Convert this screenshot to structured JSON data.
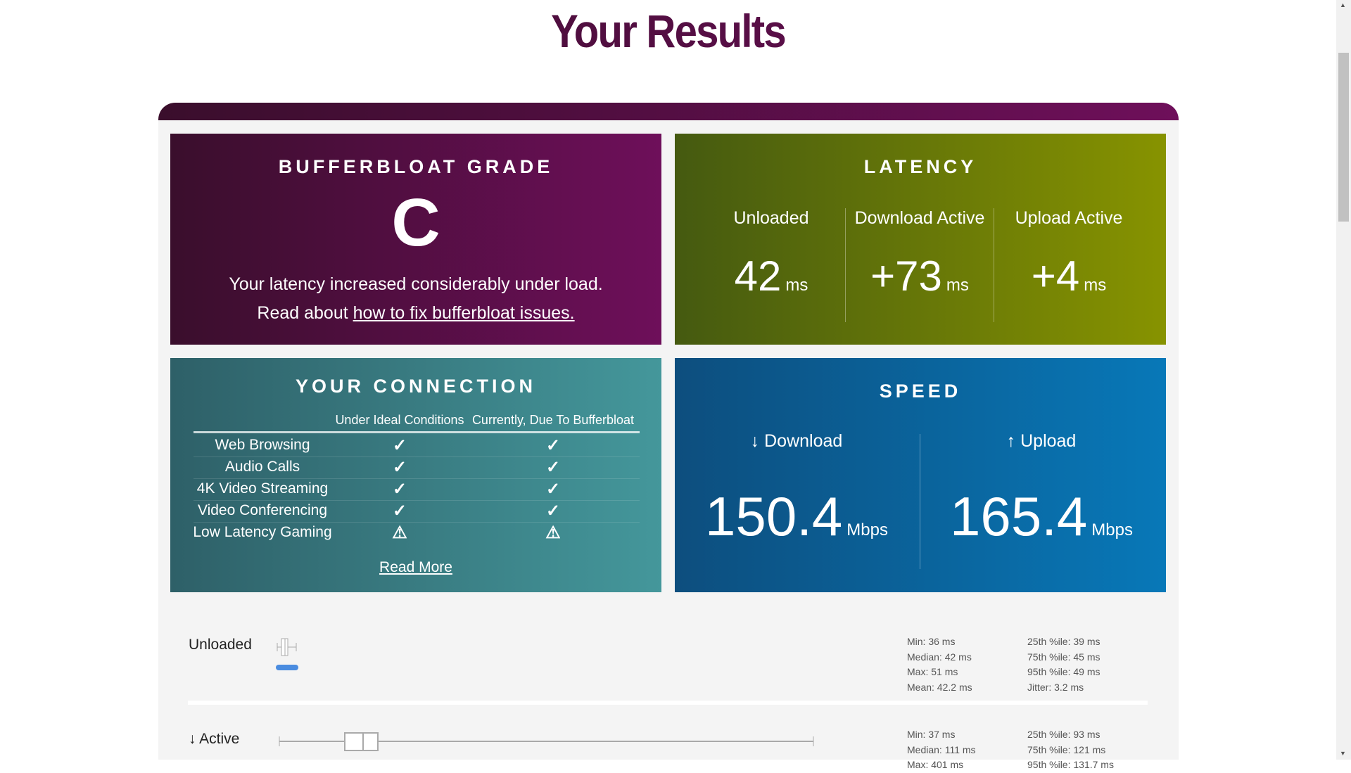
{
  "page": {
    "title": "Your Results"
  },
  "grade": {
    "heading": "BUFFERBLOAT GRADE",
    "grade": "C",
    "message": "Your latency increased considerably under load.",
    "read_prefix": "Read about ",
    "link": "how to fix bufferbloat issues.",
    "gradient": [
      "#3a0e2c",
      "#6e0f5a"
    ]
  },
  "latency": {
    "heading": "LATENCY",
    "items": [
      {
        "label": "Unloaded",
        "value": "42",
        "unit": "ms"
      },
      {
        "label": "Download Active",
        "value": "+73",
        "unit": "ms"
      },
      {
        "label": "Upload Active",
        "value": "+4",
        "unit": "ms"
      }
    ],
    "gradient": [
      "#455a10",
      "#879300"
    ]
  },
  "connection": {
    "heading": "YOUR CONNECTION",
    "columns": [
      "Under Ideal Conditions",
      "Currently, Due To Bufferbloat"
    ],
    "rows": [
      {
        "label": "Web Browsing",
        "ideal": "check",
        "current": "check"
      },
      {
        "label": "Audio Calls",
        "ideal": "check",
        "current": "check"
      },
      {
        "label": "4K Video Streaming",
        "ideal": "check",
        "current": "check"
      },
      {
        "label": "Video Conferencing",
        "ideal": "check",
        "current": "check"
      },
      {
        "label": "Low Latency Gaming",
        "ideal": "warning",
        "current": "warning"
      }
    ],
    "read_more": "Read More"
  },
  "speed": {
    "heading": "SPEED",
    "download": {
      "label": "↓ Download",
      "value": "150.4",
      "unit": "Mbps"
    },
    "upload": {
      "label": "↑ Upload",
      "value": "165.4",
      "unit": "Mbps"
    }
  },
  "details": [
    {
      "label": "Unloaded",
      "stats_left": [
        "Min: 36 ms",
        "Median: 42 ms",
        "Max: 51 ms",
        "Mean: 42.2 ms"
      ],
      "stats_right": [
        "25th %ile: 39 ms",
        "75th %ile: 45 ms",
        "95th %ile: 49 ms",
        "Jitter: 3.2 ms"
      ]
    },
    {
      "label": "↓ Active",
      "stats_left": [
        "Min: 37 ms",
        "Median: 111 ms",
        "Max: 401 ms"
      ],
      "stats_right": [
        "25th %ile: 93 ms",
        "75th %ile: 121 ms",
        "95th %ile: 131.7 ms"
      ]
    }
  ]
}
